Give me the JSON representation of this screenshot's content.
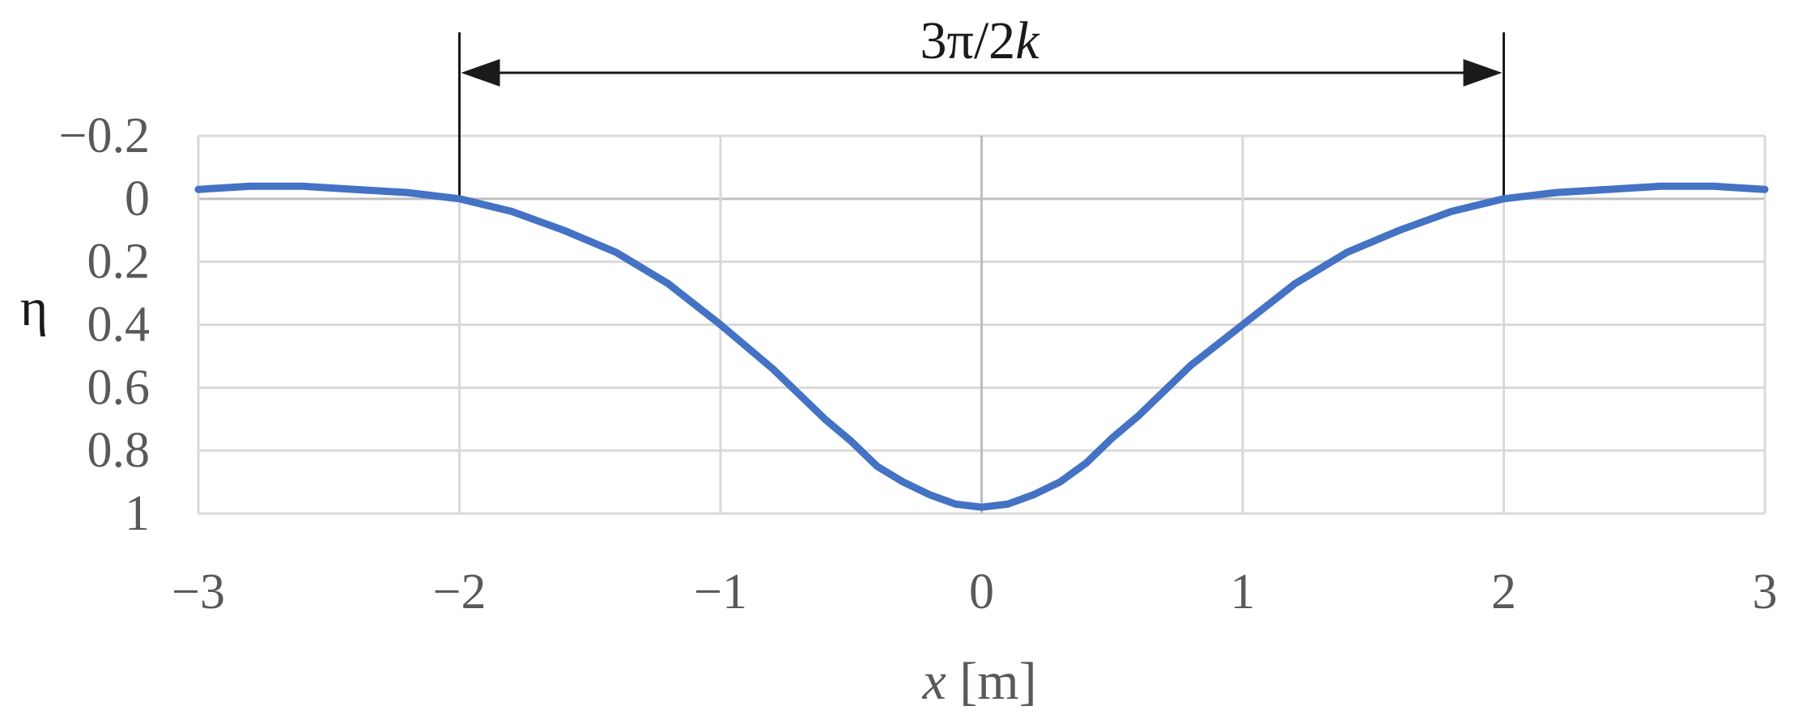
{
  "chart_data": {
    "type": "line",
    "title": "",
    "xlabel": "",
    "ylabel": "η",
    "x_axis_title": {
      "variable": "x",
      "unit": " [m]"
    },
    "xlim": [
      -3,
      3
    ],
    "ylim": [
      -0.2,
      1
    ],
    "y_inverted": true,
    "grid": true,
    "x_ticks": [
      -3,
      -2,
      -1,
      0,
      1,
      2,
      3
    ],
    "x_tick_labels": [
      "−3",
      "−2",
      "−1",
      "0",
      "1",
      "2",
      "3"
    ],
    "y_ticks": [
      -0.2,
      0,
      0.2,
      0.4,
      0.6,
      0.8,
      1
    ],
    "y_tick_labels": [
      "−0.2",
      "0",
      "0.2",
      "0.4",
      "0.6",
      "0.8",
      "1"
    ],
    "series": [
      {
        "color": "#4472c4",
        "x": [
          -3.0,
          -2.8,
          -2.6,
          -2.4,
          -2.2,
          -2.0,
          -1.8,
          -1.6,
          -1.4,
          -1.2,
          -1.0,
          -0.8,
          -0.6,
          -0.5,
          -0.4,
          -0.3,
          -0.2,
          -0.1,
          0.0,
          0.1,
          0.2,
          0.3,
          0.4,
          0.5,
          0.6,
          0.8,
          1.0,
          1.2,
          1.4,
          1.6,
          1.8,
          2.0,
          2.2,
          2.4,
          2.6,
          2.8,
          3.0
        ],
        "y": [
          -0.03,
          -0.04,
          -0.04,
          -0.03,
          -0.02,
          0.0,
          0.04,
          0.1,
          0.17,
          0.27,
          0.4,
          0.54,
          0.7,
          0.77,
          0.85,
          0.9,
          0.94,
          0.97,
          0.98,
          0.97,
          0.94,
          0.9,
          0.84,
          0.76,
          0.69,
          0.53,
          0.4,
          0.27,
          0.17,
          0.1,
          0.04,
          0.0,
          -0.02,
          -0.03,
          -0.04,
          -0.04,
          -0.03
        ]
      }
    ],
    "annotations": [
      {
        "type": "double-arrow",
        "text_main": "3π/2",
        "text_italic": "k",
        "x_start": -2,
        "x_end": 2
      }
    ]
  }
}
